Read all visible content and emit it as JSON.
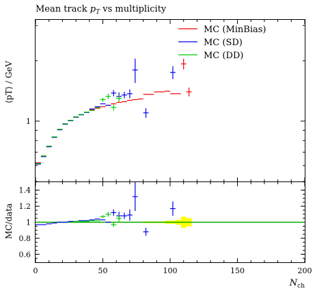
{
  "chart_data": {
    "type": "scatter",
    "title": "Mean track pT vs multiplicity",
    "title_parts": {
      "main": "Mean track ",
      "var": "p",
      "sub": "T",
      "rest": " vs multiplicity"
    },
    "top_ylabel": "⟨pT⟩ / GeV",
    "bottom_ylabel": "MC/data",
    "xlabel": "Nch",
    "xlabel_parts": {
      "var": "N",
      "sub": "ch"
    },
    "xlim": [
      0,
      200
    ],
    "top_ylim_log": [
      0.5,
      3.2
    ],
    "bottom_ylim": [
      0.5,
      1.5
    ],
    "x_ticks": [
      "0",
      "50",
      "100",
      "150",
      "200"
    ],
    "top_y_ticks": [
      "1"
    ],
    "bottom_y_ticks": [
      "0.6",
      "0.8",
      "1",
      "1.2",
      "1.4"
    ],
    "legend_position": "top-right",
    "series": [
      {
        "name": "MC (MinBias)",
        "color": "#ee0000",
        "top": [
          {
            "x": 2,
            "y": 0.62
          },
          {
            "x": 6,
            "y": 0.67
          },
          {
            "x": 10,
            "y": 0.75
          },
          {
            "x": 14,
            "y": 0.83
          },
          {
            "x": 18,
            "y": 0.91
          },
          {
            "x": 22,
            "y": 0.97
          },
          {
            "x": 26,
            "y": 1.01
          },
          {
            "x": 30,
            "y": 1.05
          },
          {
            "x": 34,
            "y": 1.08
          },
          {
            "x": 38,
            "y": 1.11
          },
          {
            "x": 42,
            "y": 1.14
          },
          {
            "x": 46,
            "y": 1.16
          },
          {
            "x": 50,
            "y": 1.18
          },
          {
            "x": 54,
            "y": 1.2
          },
          {
            "x": 58,
            "y": 1.22
          },
          {
            "x": 62,
            "y": 1.24
          },
          {
            "x": 66,
            "y": 1.25
          },
          {
            "x": 70,
            "y": 1.27
          },
          {
            "x": 74,
            "y": 1.28
          },
          {
            "x": 78,
            "y": 1.29
          },
          {
            "x": 82,
            "y": 1.36
          },
          {
            "x": 86,
            "y": 1.36
          },
          {
            "x": 90,
            "y": 1.4
          },
          {
            "x": 94,
            "y": 1.4
          },
          {
            "x": 98,
            "y": 1.41
          },
          {
            "x": 102,
            "y": 1.37
          },
          {
            "x": 106,
            "y": 1.37
          },
          {
            "x": 110,
            "y": 1.93,
            "err": 0.12
          },
          {
            "x": 114,
            "y": 1.4,
            "err": 0.07
          }
        ],
        "ratio": []
      },
      {
        "name": "MC (SD)",
        "color": "#0000ee",
        "top": [
          {
            "x": 2,
            "y": 0.61
          },
          {
            "x": 6,
            "y": 0.665
          },
          {
            "x": 10,
            "y": 0.745
          },
          {
            "x": 14,
            "y": 0.83
          },
          {
            "x": 18,
            "y": 0.905
          },
          {
            "x": 22,
            "y": 0.965
          },
          {
            "x": 26,
            "y": 1.005
          },
          {
            "x": 30,
            "y": 1.045
          },
          {
            "x": 34,
            "y": 1.075
          },
          {
            "x": 38,
            "y": 1.105
          },
          {
            "x": 42,
            "y": 1.15
          },
          {
            "x": 46,
            "y": 1.18
          },
          {
            "x": 50,
            "y": 1.22
          },
          {
            "x": 54,
            "y": 1.2
          },
          {
            "x": 58,
            "y": 1.38,
            "err": 0.05
          },
          {
            "x": 62,
            "y": 1.33,
            "err": 0.06
          },
          {
            "x": 66,
            "y": 1.35,
            "err": 0.05
          },
          {
            "x": 70,
            "y": 1.37,
            "err": 0.07
          },
          {
            "x": 74,
            "y": 1.8,
            "err": 0.25
          },
          {
            "x": 82,
            "y": 1.1,
            "err": 0.06
          },
          {
            "x": 102,
            "y": 1.75,
            "err": 0.13
          }
        ],
        "ratio": [
          {
            "x": 2,
            "y": 0.97
          },
          {
            "x": 6,
            "y": 0.97
          },
          {
            "x": 10,
            "y": 0.98
          },
          {
            "x": 14,
            "y": 0.99
          },
          {
            "x": 18,
            "y": 1.0
          },
          {
            "x": 22,
            "y": 1.0
          },
          {
            "x": 26,
            "y": 1.01
          },
          {
            "x": 30,
            "y": 1.01
          },
          {
            "x": 34,
            "y": 1.02
          },
          {
            "x": 38,
            "y": 1.02
          },
          {
            "x": 42,
            "y": 1.03
          },
          {
            "x": 46,
            "y": 1.04
          },
          {
            "x": 50,
            "y": 1.03
          },
          {
            "x": 54,
            "y": 1.0
          },
          {
            "x": 58,
            "y": 1.12,
            "err": 0.04
          },
          {
            "x": 62,
            "y": 1.08,
            "err": 0.05
          },
          {
            "x": 66,
            "y": 1.08,
            "err": 0.04
          },
          {
            "x": 70,
            "y": 1.09,
            "err": 0.07
          },
          {
            "x": 74,
            "y": 1.32,
            "err": 0.18
          },
          {
            "x": 82,
            "y": 0.88,
            "err": 0.05
          },
          {
            "x": 102,
            "y": 1.17,
            "err": 0.09
          }
        ]
      },
      {
        "name": "MC (DD)",
        "color": "#00cc00",
        "top": [
          {
            "x": 2,
            "y": 0.615
          },
          {
            "x": 6,
            "y": 0.67
          },
          {
            "x": 10,
            "y": 0.75
          },
          {
            "x": 14,
            "y": 0.835
          },
          {
            "x": 18,
            "y": 0.91
          },
          {
            "x": 22,
            "y": 0.97
          },
          {
            "x": 26,
            "y": 1.01
          },
          {
            "x": 30,
            "y": 1.05
          },
          {
            "x": 34,
            "y": 1.08
          },
          {
            "x": 38,
            "y": 1.11
          },
          {
            "x": 42,
            "y": 1.13
          },
          {
            "x": 46,
            "y": 1.17
          },
          {
            "x": 50,
            "y": 1.28,
            "err": 0.03
          },
          {
            "x": 54,
            "y": 1.33,
            "err": 0.04
          },
          {
            "x": 58,
            "y": 1.17,
            "err": 0.04
          },
          {
            "x": 62,
            "y": 1.3,
            "err": 0.05
          }
        ],
        "ratio": [
          {
            "x": 30,
            "y": 1.01
          },
          {
            "x": 34,
            "y": 1.01
          },
          {
            "x": 38,
            "y": 1.01
          },
          {
            "x": 42,
            "y": 1.02
          },
          {
            "x": 46,
            "y": 1.02
          },
          {
            "x": 50,
            "y": 1.07,
            "err": 0.02
          },
          {
            "x": 54,
            "y": 1.1,
            "err": 0.03
          },
          {
            "x": 58,
            "y": 0.97,
            "err": 0.03
          },
          {
            "x": 62,
            "y": 1.05,
            "err": 0.04
          }
        ]
      }
    ],
    "ratio_reference": {
      "color": "#00aa00",
      "y": 1.0
    },
    "ratio_band": {
      "color": "#ffff00",
      "segments": [
        {
          "x0": 0,
          "x1": 80,
          "half": 0.005
        },
        {
          "x0": 80,
          "x1": 96,
          "half": 0.01
        },
        {
          "x0": 96,
          "x1": 104,
          "half": 0.02
        },
        {
          "x0": 104,
          "x1": 108,
          "half": 0.03
        },
        {
          "x0": 108,
          "x1": 112,
          "half": 0.07
        },
        {
          "x0": 112,
          "x1": 116,
          "half": 0.05
        }
      ]
    }
  }
}
